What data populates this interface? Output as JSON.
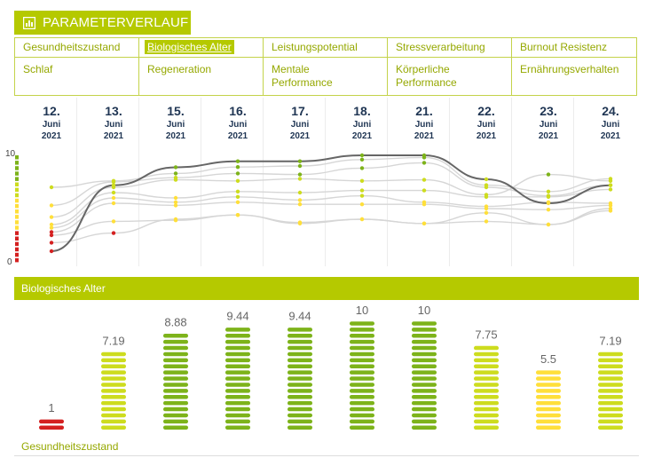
{
  "header": {
    "title": "PARAMETERVERLAUF",
    "icon": "chart-icon"
  },
  "tabs": [
    {
      "label": "Gesundheitszustand",
      "active": false
    },
    {
      "label": "Biologisches Alter",
      "active": true
    },
    {
      "label": "Leistungspotential",
      "active": false
    },
    {
      "label": "Stressverarbeitung",
      "active": false
    },
    {
      "label": "Burnout Resistenz",
      "active": false
    },
    {
      "label": "Schlaf",
      "active": false
    },
    {
      "label": "Regeneration",
      "active": false
    },
    {
      "label": "Mentale Performance",
      "active": false
    },
    {
      "label": "Körperliche Performance",
      "active": false
    },
    {
      "label": "Ernährungsverhalten",
      "active": false
    }
  ],
  "dates": [
    {
      "day": "12.",
      "month": "Juni",
      "year": "2021"
    },
    {
      "day": "13.",
      "month": "Juni",
      "year": "2021"
    },
    {
      "day": "15.",
      "month": "Juni",
      "year": "2021"
    },
    {
      "day": "16.",
      "month": "Juni",
      "year": "2021"
    },
    {
      "day": "17.",
      "month": "Juni",
      "year": "2021"
    },
    {
      "day": "18.",
      "month": "Juni",
      "year": "2021"
    },
    {
      "day": "21.",
      "month": "Juni",
      "year": "2021"
    },
    {
      "day": "22.",
      "month": "Juni",
      "year": "2021"
    },
    {
      "day": "23.",
      "month": "Juni",
      "year": "2021"
    },
    {
      "day": "24.",
      "month": "Juni",
      "year": "2021"
    }
  ],
  "selected_parameter_title": "Biologisches Alter",
  "bar_footer_label": "Gesundheitszustand",
  "colors": {
    "brand": "#b5c900",
    "red": "#d42020",
    "green": "#7db31a",
    "yellowgreen": "#cddc1e",
    "yellow": "#ffdf3a",
    "line_gray": "#d6d6d6",
    "line_dark": "#666666"
  },
  "chart_data": [
    {
      "type": "line",
      "title": "",
      "x": [
        "12. Juni 2021",
        "13. Juni 2021",
        "15. Juni 2021",
        "16. Juni 2021",
        "17. Juni 2021",
        "18. Juni 2021",
        "21. Juni 2021",
        "22. Juni 2021",
        "23. Juni 2021",
        "24. Juni 2021"
      ],
      "ylim": [
        0,
        10
      ],
      "ytick_labels": [
        "0",
        "10"
      ],
      "highlight_series": "Biologisches Alter",
      "series": [
        {
          "name": "Biologisches Alter",
          "values": [
            1,
            7.19,
            8.88,
            9.44,
            9.44,
            10,
            10,
            7.75,
            5.5,
            7.19
          ]
        },
        {
          "name": "",
          "values": [
            7,
            7.6,
            8.3,
            8.9,
            9.0,
            9.6,
            9.8,
            7.2,
            6.6,
            7.8
          ]
        },
        {
          "name": "",
          "values": [
            5.3,
            7.5,
            7.9,
            8.3,
            8.2,
            8.8,
            9.3,
            7.0,
            6.2,
            7.2
          ]
        },
        {
          "name": "",
          "values": [
            4.2,
            7.0,
            7.7,
            7.6,
            7.8,
            7.6,
            7.7,
            6.3,
            8.2,
            7.6
          ]
        },
        {
          "name": "",
          "values": [
            3.5,
            6.5,
            6.0,
            6.6,
            6.5,
            6.7,
            6.7,
            6.1,
            6.1,
            6.8
          ]
        },
        {
          "name": "",
          "values": [
            3.2,
            6.0,
            5.6,
            6.1,
            5.8,
            6.2,
            5.6,
            5.2,
            5.6,
            5.5
          ]
        },
        {
          "name": "",
          "values": [
            2.8,
            5.5,
            5.3,
            5.6,
            5.4,
            5.4,
            5.4,
            5.0,
            4.9,
            5.3
          ]
        },
        {
          "name": "",
          "values": [
            2.5,
            3.8,
            3.9,
            4.4,
            3.7,
            4.0,
            3.6,
            4.6,
            3.5,
            5.0
          ]
        },
        {
          "name": "",
          "values": [
            1.8,
            2.7,
            4.0,
            4.4,
            3.6,
            4.0,
            3.6,
            3.8,
            3.5,
            4.8
          ]
        }
      ]
    },
    {
      "type": "bar",
      "title": "Biologisches Alter",
      "categories": [
        "12. Juni 2021",
        "13. Juni 2021",
        "15. Juni 2021",
        "16. Juni 2021",
        "17. Juni 2021",
        "18. Juni 2021",
        "21. Juni 2021",
        "22. Juni 2021",
        "23. Juni 2021",
        "24. Juni 2021"
      ],
      "values": [
        1,
        7.19,
        8.88,
        9.44,
        9.44,
        10,
        10,
        7.75,
        5.5,
        7.19
      ],
      "value_labels": [
        "1",
        "7.19",
        "8.88",
        "9.44",
        "9.44",
        "10",
        "10",
        "7.75",
        "5.5",
        "7.19"
      ],
      "ylim": [
        0,
        10
      ]
    }
  ]
}
